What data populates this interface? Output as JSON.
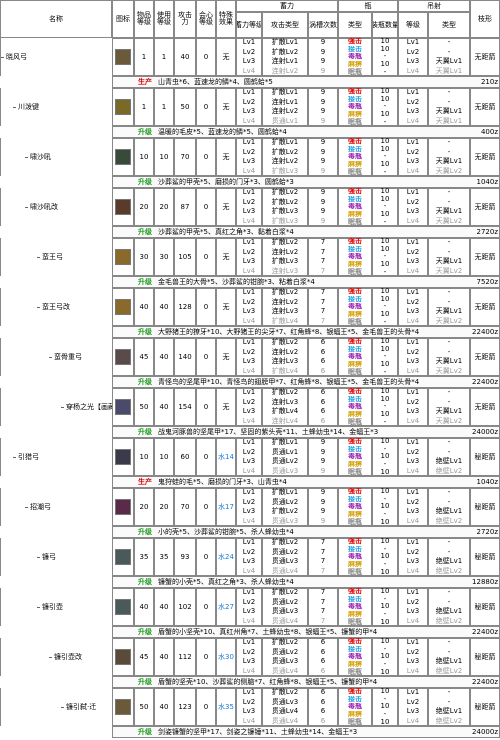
{
  "header": {
    "name": "名称",
    "icon": "图标",
    "item_level": "物品等级",
    "use_level": "使用等级",
    "attack": "攻击力",
    "crit": "会心等级",
    "special": "特殊效果",
    "charge": "蓄力",
    "charge_level": "蓄力等级",
    "attack_type": "攻击类型",
    "swirl": "涡槽次数",
    "bottle": "瓶",
    "bottle_type": "类型",
    "bottle_count": "装瓶数量",
    "arc": "吊射",
    "arc_level": "等级",
    "arc_type": "类型",
    "shot": "枝形"
  },
  "weapons": [
    {
      "name": "晓风弓",
      "tier": 0,
      "stats": [
        "1",
        "1",
        "40",
        "0",
        "无"
      ],
      "charge": [
        [
          "Lv1",
          "扩散Lv1",
          "9"
        ],
        [
          "Lv2",
          "扩散Lv2",
          "9"
        ],
        [
          "Lv3",
          "连射Lv1",
          "9"
        ],
        [
          "Lv4",
          "连射Lv2",
          "9"
        ]
      ],
      "bottles": [
        [
          "强击",
          "10"
        ],
        [
          "接击",
          "10"
        ],
        [
          "毒瓶",
          "-"
        ],
        [
          "麻痹",
          "10"
        ],
        [
          "眠瓶",
          "-"
        ]
      ],
      "arc": [
        [
          "Lv1",
          "-"
        ],
        [
          "Lv2",
          "-"
        ],
        [
          "Lv3",
          "天翼Lv1"
        ],
        [
          "Lv4",
          "天翼Lv1"
        ]
      ],
      "shot": "无距箭",
      "mat": {
        "kind": "生产",
        "text": "山青虫*6、蓝速龙的鳞*4、圆鹤蛤*5",
        "price": "210z"
      }
    },
    {
      "name": "川泼键",
      "tier": 1,
      "stats": [
        "1",
        "1",
        "50",
        "0",
        "无"
      ],
      "charge": [
        [
          "Lv1",
          "扩散Lv1",
          "9"
        ],
        [
          "Lv2",
          "连射Lv1",
          "9"
        ],
        [
          "Lv3",
          "连射Lv2",
          "9"
        ],
        [
          "Lv4",
          "贯通Lv1",
          "9"
        ]
      ],
      "bottles": [
        [
          "强击",
          "10"
        ],
        [
          "接击",
          "10"
        ],
        [
          "毒瓶",
          "-"
        ],
        [
          "麻痹",
          "10"
        ],
        [
          "眠瓶",
          "-"
        ]
      ],
      "arc": [
        [
          "Lv1",
          "-"
        ],
        [
          "Lv2",
          "-"
        ],
        [
          "Lv3",
          "天翼Lv1"
        ],
        [
          "Lv4",
          "天翼Lv1"
        ]
      ],
      "shot": "无距箭",
      "mat": {
        "kind": "升级",
        "text": "温暖的毛皮*5、蓝速龙的鳞*5、圆鹤蛤*4",
        "price": "400z"
      }
    },
    {
      "name": "啸沙吼",
      "tier": 2,
      "stats": [
        "10",
        "10",
        "70",
        "0",
        "无"
      ],
      "charge": [
        [
          "Lv1",
          "扩散Lv1",
          "9"
        ],
        [
          "Lv2",
          "扩散Lv2",
          "9"
        ],
        [
          "Lv3",
          "连射Lv2",
          "9"
        ],
        [
          "Lv4",
          "扩散Lv3",
          "9"
        ]
      ],
      "bottles": [
        [
          "强击",
          "10"
        ],
        [
          "接击",
          "10"
        ],
        [
          "毒瓶",
          "-"
        ],
        [
          "麻痹",
          "10"
        ],
        [
          "眠瓶",
          "-"
        ]
      ],
      "arc": [
        [
          "Lv1",
          "-"
        ],
        [
          "Lv2",
          "-"
        ],
        [
          "Lv3",
          "天翼Lv1"
        ],
        [
          "Lv4",
          "天翼Lv2"
        ]
      ],
      "shot": "无距箭",
      "mat": {
        "kind": "升级",
        "text": "沙葬鲨的甲壳*5、磨损的门牙*3、圆鹤蛤*3",
        "price": "1040z"
      }
    },
    {
      "name": "啸沙吼改",
      "tier": 2,
      "stats": [
        "20",
        "20",
        "87",
        "0",
        "无"
      ],
      "charge": [
        [
          "Lv1",
          "扩散Lv2",
          "9"
        ],
        [
          "Lv2",
          "扩散Lv2",
          "9"
        ],
        [
          "Lv3",
          "扩散Lv3",
          "9"
        ],
        [
          "Lv4",
          "扩散Lv3",
          "9"
        ]
      ],
      "bottles": [
        [
          "强击",
          "10"
        ],
        [
          "接击",
          "10"
        ],
        [
          "毒瓶",
          "-"
        ],
        [
          "麻痹",
          "10"
        ],
        [
          "眠瓶",
          "-"
        ]
      ],
      "arc": [
        [
          "Lv1",
          "-"
        ],
        [
          "Lv2",
          "-"
        ],
        [
          "Lv3",
          "天翼Lv1"
        ],
        [
          "Lv4",
          "天翼Lv2"
        ]
      ],
      "shot": "无距箭",
      "mat": {
        "kind": "升级",
        "text": "沙葬鲨的甲壳*5、真红之角*3、黏着白浆*4",
        "price": "2720z"
      }
    },
    {
      "name": "蛮王弓",
      "tier": 3,
      "stats": [
        "30",
        "30",
        "105",
        "0",
        "无"
      ],
      "charge": [
        [
          "Lv1",
          "扩散Lv2",
          "7"
        ],
        [
          "Lv2",
          "连射Lv2",
          "7"
        ],
        [
          "Lv3",
          "扩散Lv3",
          "7"
        ],
        [
          "Lv4",
          "连射Lv3",
          "7"
        ]
      ],
      "bottles": [
        [
          "强击",
          "10"
        ],
        [
          "接击",
          "10"
        ],
        [
          "毒瓶",
          "-"
        ],
        [
          "麻痹",
          "10"
        ],
        [
          "眠瓶",
          "-"
        ]
      ],
      "arc": [
        [
          "Lv1",
          "-"
        ],
        [
          "Lv2",
          "-"
        ],
        [
          "Lv3",
          "天翼Lv1"
        ],
        [
          "Lv4",
          "天翼Lv2"
        ]
      ],
      "shot": "无距箭",
      "mat": {
        "kind": "升级",
        "text": "金毛兽王的大骨*5、沙葬鲨的钳腕*3、粘着白浆*4",
        "price": "7520z"
      }
    },
    {
      "name": "蛮王弓改",
      "tier": 3,
      "stats": [
        "40",
        "40",
        "128",
        "0",
        "无"
      ],
      "charge": [
        [
          "Lv1",
          "扩散Lv2",
          "7"
        ],
        [
          "Lv2",
          "连射Lv2",
          "7"
        ],
        [
          "Lv3",
          "连射Lv3",
          "7"
        ],
        [
          "Lv4",
          "扩散Lv4",
          "7"
        ]
      ],
      "bottles": [
        [
          "强击",
          "10"
        ],
        [
          "接击",
          "10"
        ],
        [
          "毒瓶",
          "-"
        ],
        [
          "麻痹",
          "10"
        ],
        [
          "眠瓶",
          "-"
        ]
      ],
      "arc": [
        [
          "Lv1",
          "-"
        ],
        [
          "Lv2",
          "-"
        ],
        [
          "Lv3",
          "天翼Lv1"
        ],
        [
          "Lv4",
          "天翼Lv2"
        ]
      ],
      "shot": "无距箭",
      "mat": {
        "kind": "升级",
        "text": "大野猪王的獠牙*10、大野猪王的尖牙*7、红角蜂*8、银蝠王*5、金毛兽王的头骨*4",
        "price": "22400z"
      }
    },
    {
      "name": "蛮骨重弓",
      "tier": 4,
      "stats": [
        "45",
        "40",
        "140",
        "0",
        "无"
      ],
      "charge": [
        [
          "Lv1",
          "扩散Lv2",
          "6"
        ],
        [
          "Lv2",
          "连射Lv2",
          "6"
        ],
        [
          "Lv3",
          "连射Lv3",
          "6"
        ],
        [
          "Lv4",
          "扩散Lv4",
          "6"
        ]
      ],
      "bottles": [
        [
          "强击",
          "10"
        ],
        [
          "接击",
          "10"
        ],
        [
          "毒瓶",
          "-"
        ],
        [
          "麻痹",
          "10"
        ],
        [
          "眠瓶",
          "-"
        ]
      ],
      "arc": [
        [
          "Lv1",
          "-"
        ],
        [
          "Lv2",
          "-"
        ],
        [
          "Lv3",
          "天翼Lv1"
        ],
        [
          "Lv4",
          "天翼Lv2"
        ]
      ],
      "shot": "无距箭",
      "mat": {
        "kind": "升级",
        "text": "青怪鸟的坚尾甲*10、青怪鸟的翅膀甲*7、红角蜂*8、银蝠王*5、金毛兽王的头骨*4",
        "price": "22400z"
      }
    },
    {
      "name": "穿杨之光【画藏】",
      "tier": 5,
      "stats": [
        "50",
        "40",
        "154",
        "0",
        "无"
      ],
      "charge": [
        [
          "Lv1",
          "扩散Lv2",
          "6"
        ],
        [
          "Lv2",
          "连射Lv3",
          "6"
        ],
        [
          "Lv3",
          "扩散Lv4",
          "6"
        ],
        [
          "Lv4",
          "连射Lv4",
          "6"
        ]
      ],
      "bottles": [
        [
          "强击",
          "10"
        ],
        [
          "接击",
          "10"
        ],
        [
          "毒瓶",
          "-"
        ],
        [
          "麻痹",
          "10"
        ],
        [
          "眠瓶",
          "-"
        ]
      ],
      "arc": [
        [
          "Lv1",
          "-"
        ],
        [
          "Lv2",
          "-"
        ],
        [
          "Lv3",
          "天翼Lv1"
        ],
        [
          "Lv4",
          "天翼Lv2"
        ]
      ],
      "shot": "无距箭",
      "mat": {
        "kind": "升级",
        "text": "战鬼河豚兽的坚尾甲*17、坚固的紫头壳*11、土蜂幼虫*14、金蝠王*3",
        "price": "24000z"
      }
    },
    {
      "name": "引猎弓",
      "tier": 1,
      "stats": [
        "10",
        "10",
        "60",
        "0",
        "水14"
      ],
      "charge": [
        [
          "Lv1",
          "扩散Lv1",
          "9"
        ],
        [
          "Lv2",
          "贯通Lv1",
          "9"
        ],
        [
          "Lv3",
          "贯通Lv2",
          "9"
        ],
        [
          "Lv4",
          "贯通Lv3",
          "9"
        ]
      ],
      "bottles": [
        [
          "强击",
          "10"
        ],
        [
          "接击",
          "-"
        ],
        [
          "毒瓶",
          "10"
        ],
        [
          "麻痹",
          "-"
        ],
        [
          "眠瓶",
          "10"
        ]
      ],
      "arc": [
        [
          "Lv1",
          "-"
        ],
        [
          "Lv2",
          "-"
        ],
        [
          "Lv3",
          "绝壁Lv1"
        ],
        [
          "Lv4",
          "绝壁Lv2"
        ]
      ],
      "shot": "秘距箭",
      "mat": {
        "kind": "生产",
        "text": "鬼狩蛙的毛*5、磨损的门牙*3、山青虫*4",
        "price": "1040z"
      }
    },
    {
      "name": "招潮弓",
      "tier": 2,
      "stats": [
        "20",
        "20",
        "70",
        "0",
        "水17"
      ],
      "charge": [
        [
          "Lv1",
          "扩散Lv1",
          "9"
        ],
        [
          "Lv2",
          "贯通Lv2",
          "9"
        ],
        [
          "Lv3",
          "扩散Lv2",
          "9"
        ],
        [
          "Lv4",
          "贯通Lv3",
          "9"
        ]
      ],
      "bottles": [
        [
          "强击",
          "10"
        ],
        [
          "接击",
          "-"
        ],
        [
          "毒瓶",
          "10"
        ],
        [
          "麻痹",
          "-"
        ],
        [
          "眠瓶",
          "10"
        ]
      ],
      "arc": [
        [
          "Lv1",
          "-"
        ],
        [
          "Lv2",
          "-"
        ],
        [
          "Lv3",
          "绝壁Lv1"
        ],
        [
          "Lv4",
          "绝壁Lv2"
        ]
      ],
      "shot": "秘距箭",
      "mat": {
        "kind": "升级",
        "text": "小的壳*5、沙葬鲨的钳腕*5、杀人蜂幼虫*4",
        "price": "2720z"
      }
    },
    {
      "name": "镰弓",
      "tier": 3,
      "stats": [
        "35",
        "35",
        "93",
        "0",
        "水24"
      ],
      "charge": [
        [
          "Lv1",
          "扩散Lv2",
          "7"
        ],
        [
          "Lv2",
          "贯通Lv2",
          "7"
        ],
        [
          "Lv3",
          "贯通Lv3",
          "7"
        ],
        [
          "Lv4",
          "贯通Lv4",
          "7"
        ]
      ],
      "bottles": [
        [
          "强击",
          "10"
        ],
        [
          "接击",
          "-"
        ],
        [
          "毒瓶",
          "10"
        ],
        [
          "麻痹",
          "-"
        ],
        [
          "眠瓶",
          "10"
        ]
      ],
      "arc": [
        [
          "Lv1",
          "-"
        ],
        [
          "Lv2",
          "-"
        ],
        [
          "Lv3",
          "绝壁Lv1"
        ],
        [
          "Lv4",
          "绝壁Lv2"
        ]
      ],
      "shot": "秘距箭",
      "mat": {
        "kind": "升级",
        "text": "镰蟹的小壳*5、真红之角*3、杀人蜂幼虫*4",
        "price": "12880z"
      }
    },
    {
      "name": "镰引壶",
      "tier": 3,
      "stats": [
        "40",
        "40",
        "102",
        "0",
        "水27"
      ],
      "charge": [
        [
          "Lv1",
          "扩散Lv2",
          "7"
        ],
        [
          "Lv2",
          "贯通Lv2",
          "7"
        ],
        [
          "Lv3",
          "贯通Lv3",
          "7"
        ],
        [
          "Lv4",
          "贯通Lv4",
          "7"
        ]
      ],
      "bottles": [
        [
          "强击",
          "10"
        ],
        [
          "接击",
          "-"
        ],
        [
          "毒瓶",
          "10"
        ],
        [
          "麻痹",
          "-"
        ],
        [
          "眠瓶",
          "10"
        ]
      ],
      "arc": [
        [
          "Lv1",
          "-"
        ],
        [
          "Lv2",
          "-"
        ],
        [
          "Lv3",
          "绝壁Lv1"
        ],
        [
          "Lv4",
          "绝壁Lv2"
        ]
      ],
      "shot": "秘距箭",
      "mat": {
        "kind": "升级",
        "text": "盾蟹的小坚壳*10、真红州角*7、土蜂幼虫*8、银蝠王*5、镰蟹的甲*4",
        "price": "22400z"
      }
    },
    {
      "name": "镰引壶改",
      "tier": 4,
      "stats": [
        "45",
        "40",
        "112",
        "0",
        "水30"
      ],
      "charge": [
        [
          "Lv1",
          "扩散Lv2",
          "6"
        ],
        [
          "Lv2",
          "贯通Lv2",
          "6"
        ],
        [
          "Lv3",
          "贯通Lv3",
          "6"
        ],
        [
          "Lv4",
          "贯通Lv4",
          "6"
        ]
      ],
      "bottles": [
        [
          "强击",
          "10"
        ],
        [
          "接击",
          "-"
        ],
        [
          "毒瓶",
          "10"
        ],
        [
          "麻痹",
          "-"
        ],
        [
          "眠瓶",
          "10"
        ]
      ],
      "arc": [
        [
          "Lv1",
          "-"
        ],
        [
          "Lv2",
          "-"
        ],
        [
          "Lv3",
          "绝壁Lv1"
        ],
        [
          "Lv4",
          "绝壁Lv2"
        ]
      ],
      "shot": "秘距箭",
      "mat": {
        "kind": "升级",
        "text": "盾蟹的坚壳*10、沙葬鲨的侧脑*7、红角蜂*8、银蝠王*5、镰蟹的甲*4",
        "price": "22400z"
      }
    },
    {
      "name": "镰引弑·迁",
      "tier": 5,
      "stats": [
        "50",
        "40",
        "123",
        "0",
        "水35"
      ],
      "charge": [
        [
          "Lv1",
          "扩散Lv2",
          "6"
        ],
        [
          "Lv2",
          "贯通Lv3",
          "6"
        ],
        [
          "Lv3",
          "贯通Lv4",
          "6"
        ],
        [
          "Lv4",
          "贯通Lv4",
          "6"
        ]
      ],
      "bottles": [
        [
          "强击",
          "10"
        ],
        [
          "接击",
          "-"
        ],
        [
          "毒瓶",
          "10"
        ],
        [
          "麻痹",
          "-"
        ],
        [
          "眠瓶",
          "10"
        ]
      ],
      "arc": [
        [
          "Lv1",
          "-"
        ],
        [
          "Lv2",
          "-"
        ],
        [
          "Lv3",
          "绝壁Lv1"
        ],
        [
          "Lv4",
          "绝壁Lv2"
        ]
      ],
      "shot": "秘距箭",
      "mat": {
        "kind": "升级",
        "text": "剑姿镰蟹的坚甲*17、剑姿之镰锤*11、土蜂幼虫*14、金蝠王*3",
        "price": "24000z"
      }
    }
  ]
}
